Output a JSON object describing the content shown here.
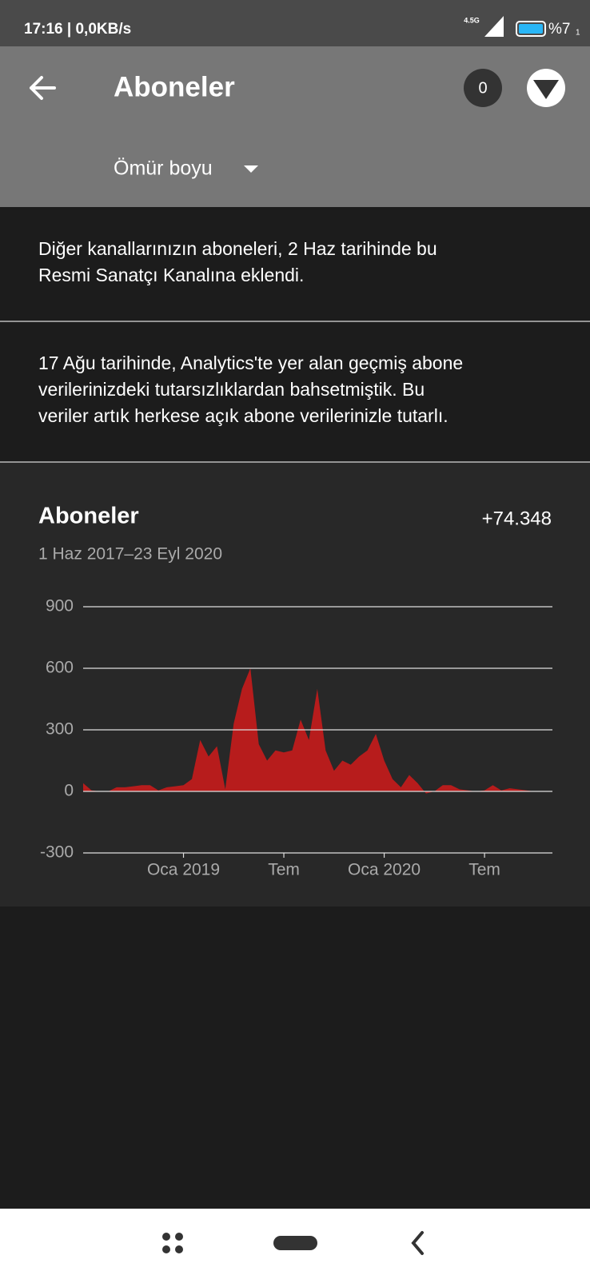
{
  "status_bar": {
    "time": "17:16 | 0,0KB/s",
    "network": "4.5G",
    "battery": "%7",
    "sim": "1"
  },
  "header": {
    "title": "Aboneler",
    "notifications": "0",
    "filter": "Ömür boyu"
  },
  "notices": [
    [
      "Diğer kanallarınızın aboneleri, 2 Haz tarihinde bu",
      "Resmi Sanatçı Kanalına eklendi."
    ],
    [
      "17 Ağu tarihinde, Analytics'te yer alan geçmiş abone",
      "verilerinizdeki tutarsızlıklardan bahsetmiştik. Bu",
      "veriler artık herkese açık abone verilerinizle tutarlı."
    ]
  ],
  "chart_data": {
    "type": "area",
    "title": "Aboneler",
    "total": "+74.348",
    "subtitle": "1 Haz 2017–23 Eyl 2020",
    "categories": [
      null,
      null,
      null,
      null,
      null,
      null,
      null,
      null,
      null,
      null,
      null,
      null,
      "Oca 2019",
      null,
      null,
      null,
      null,
      null,
      null,
      null,
      null,
      null,
      null,
      null,
      "Tem",
      null,
      null,
      null,
      null,
      null,
      null,
      null,
      null,
      null,
      null,
      null,
      "Oca 2020",
      null,
      null,
      null,
      null,
      null,
      null,
      null,
      null,
      null,
      null,
      null,
      "Tem",
      null,
      null,
      null,
      null,
      null,
      null
    ],
    "values": [
      40,
      5,
      0,
      0,
      20,
      20,
      25,
      30,
      30,
      5,
      20,
      25,
      30,
      60,
      250,
      170,
      220,
      10,
      330,
      500,
      600,
      230,
      150,
      200,
      190,
      200,
      350,
      250,
      500,
      200,
      100,
      150,
      130,
      170,
      200,
      280,
      150,
      60,
      20,
      80,
      40,
      -10,
      0,
      30,
      30,
      10,
      5,
      0,
      5,
      30,
      5,
      15,
      10,
      5,
      0
    ],
    "color": "#b71c1c",
    "ylim": [
      -300,
      900
    ],
    "yticks": [
      -300,
      0,
      300,
      600,
      900
    ],
    "grid": true
  }
}
